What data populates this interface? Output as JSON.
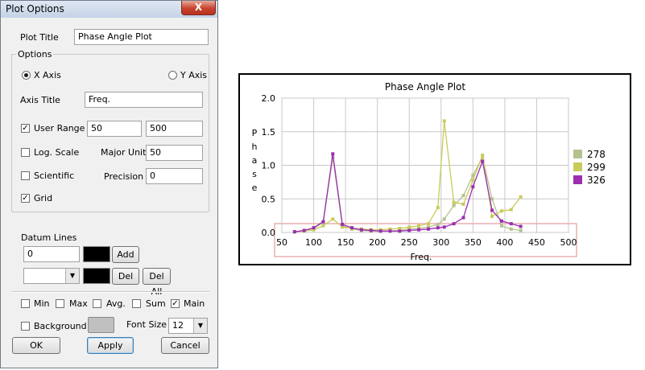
{
  "dialog": {
    "title": "Plot Options",
    "close_label": "X",
    "plot_title_label": "Plot Title",
    "plot_title_value": "Phase Angle Plot",
    "options_group": "Options",
    "x_axis_label": "X Axis",
    "y_axis_label": "Y Axis",
    "axis_title_label": "Axis Title",
    "axis_title_value": "Freq.",
    "user_range_label": "User Range",
    "user_range_min": "50",
    "user_range_max": "500",
    "log_scale_label": "Log. Scale",
    "major_unit_label": "Major Unit",
    "major_unit_value": "50",
    "scientific_label": "Scientific",
    "precision_label": "Precision",
    "precision_value": "0",
    "grid_label": "Grid",
    "datum_lines_label": "Datum Lines",
    "datum_value": "0",
    "add_label": "Add",
    "del_label": "Del",
    "del_all_label": "Del All",
    "min_label": "Min",
    "max_label": "Max",
    "avg_label": "Avg.",
    "sum_label": "Sum",
    "main_label": "Main",
    "background_label": "Background",
    "font_size_label": "Font Size",
    "font_size_value": "12",
    "ok_label": "OK",
    "apply_label": "Apply",
    "cancel_label": "Cancel",
    "check_mark": "✓",
    "dropdown_arrow": "▼"
  },
  "colors": {
    "s278": "#b5c28f",
    "s299": "#c8cc5a",
    "s326": "#9b2fb0",
    "background_swatch": "#c0c0c0",
    "datum_box": "#e8b0b0"
  },
  "chart_data": {
    "type": "line",
    "title": "Phase Angle Plot",
    "xlabel": "Freq.",
    "ylabel": "Phase",
    "xlim": [
      50,
      500
    ],
    "ylim": [
      0,
      2.0
    ],
    "x_ticks": [
      50,
      100,
      150,
      200,
      250,
      300,
      350,
      400,
      450,
      500
    ],
    "y_ticks": [
      0.0,
      0.5,
      1.0,
      1.5,
      2.0
    ],
    "x_tick_labels": [
      "50",
      "100",
      "150",
      "200",
      "250",
      "300",
      "350",
      "400",
      "450",
      "500"
    ],
    "y_tick_labels": [
      "0.0",
      "0.5",
      "1.0",
      "1.5",
      "2.0"
    ],
    "grid": true,
    "legend_position": "right",
    "series": [
      {
        "name": "278",
        "color": "#b5c28f",
        "x": [
          70,
          85,
          100,
          115,
          130,
          145,
          160,
          175,
          190,
          205,
          220,
          235,
          250,
          265,
          280,
          295,
          305,
          320,
          335,
          350,
          365,
          380,
          395,
          410,
          425
        ],
        "y": [
          0.01,
          0.03,
          0.06,
          0.15,
          1.12,
          0.1,
          0.05,
          0.03,
          0.02,
          0.02,
          0.02,
          0.03,
          0.05,
          0.06,
          0.08,
          0.12,
          0.2,
          0.4,
          0.55,
          0.85,
          1.12,
          0.5,
          0.1,
          0.05,
          0.03
        ]
      },
      {
        "name": "299",
        "color": "#c8cc5a",
        "x": [
          70,
          85,
          100,
          115,
          130,
          145,
          160,
          175,
          190,
          205,
          220,
          235,
          250,
          265,
          280,
          295,
          305,
          320,
          335,
          350,
          365,
          380,
          395,
          410,
          425
        ],
        "y": [
          0.01,
          0.02,
          0.04,
          0.1,
          0.2,
          0.08,
          0.06,
          0.05,
          0.04,
          0.04,
          0.05,
          0.06,
          0.08,
          0.1,
          0.13,
          0.37,
          1.66,
          0.45,
          0.42,
          0.78,
          1.15,
          0.24,
          0.32,
          0.34,
          0.53
        ]
      },
      {
        "name": "326",
        "color": "#9b2fb0",
        "x": [
          70,
          85,
          100,
          115,
          130,
          145,
          160,
          175,
          190,
          205,
          220,
          235,
          250,
          265,
          280,
          295,
          305,
          320,
          335,
          350,
          365,
          380,
          395,
          410,
          425
        ],
        "y": [
          0.01,
          0.03,
          0.07,
          0.16,
          1.17,
          0.12,
          0.07,
          0.04,
          0.03,
          0.02,
          0.02,
          0.02,
          0.03,
          0.04,
          0.05,
          0.07,
          0.08,
          0.13,
          0.22,
          0.68,
          1.06,
          0.33,
          0.17,
          0.13,
          0.09
        ]
      }
    ]
  }
}
